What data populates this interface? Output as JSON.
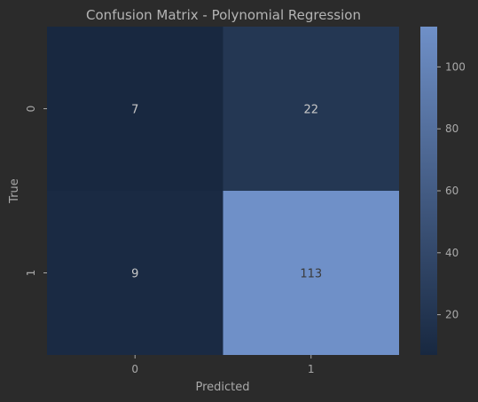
{
  "chart_data": {
    "type": "heatmap",
    "title": "Confusion Matrix - Polynomial Regression",
    "xlabel": "Predicted",
    "ylabel": "True",
    "x_categories": [
      "0",
      "1"
    ],
    "y_categories": [
      "0",
      "1"
    ],
    "values": [
      [
        7,
        22
      ],
      [
        9,
        113
      ]
    ],
    "colorbar": {
      "min": 7,
      "max": 113,
      "ticks": [
        20,
        40,
        60,
        80,
        100
      ],
      "color_low": "#182840",
      "color_high": "#6f90c8"
    }
  },
  "colors": {
    "background": "#2b2b2b",
    "text": "#a9a9a9",
    "title": "#b4b4b4",
    "cell_text_dark_bg": "#c8c8c8",
    "cell_text_light_bg": "#3a3a3a"
  }
}
